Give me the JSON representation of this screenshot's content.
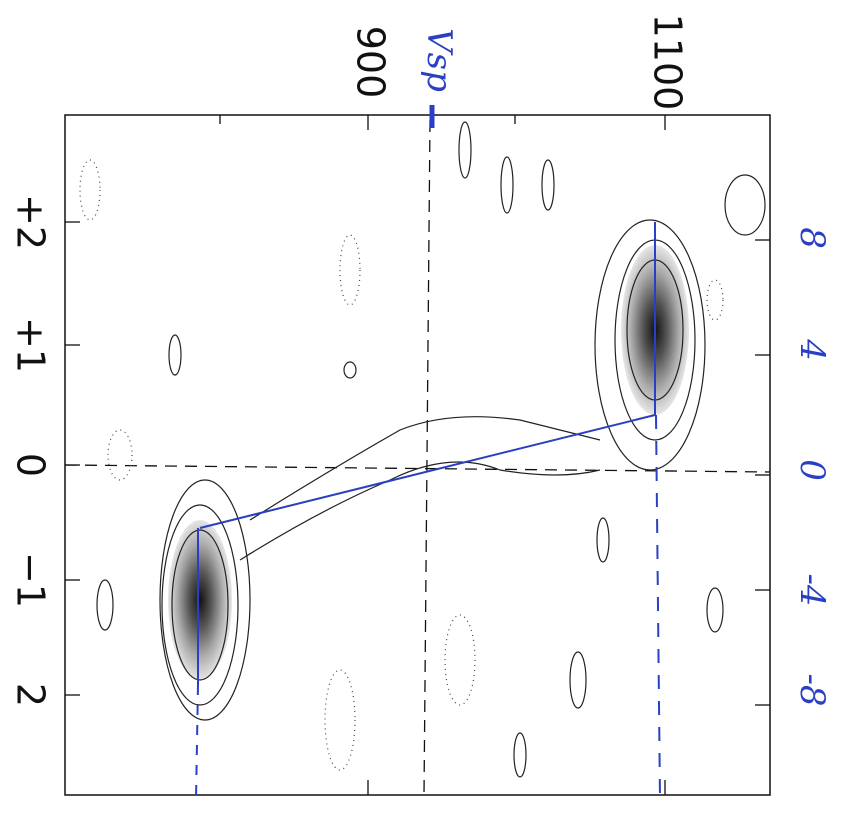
{
  "axis_top": {
    "ticks": [
      "900",
      "1100"
    ],
    "annotation": "Vsp"
  },
  "axis_left": {
    "ticks": [
      "+2",
      "+1",
      "0",
      "−1",
      "2"
    ]
  },
  "axis_right": {
    "ticks": [
      "8",
      "4",
      "0",
      "-4",
      "-8"
    ]
  }
}
